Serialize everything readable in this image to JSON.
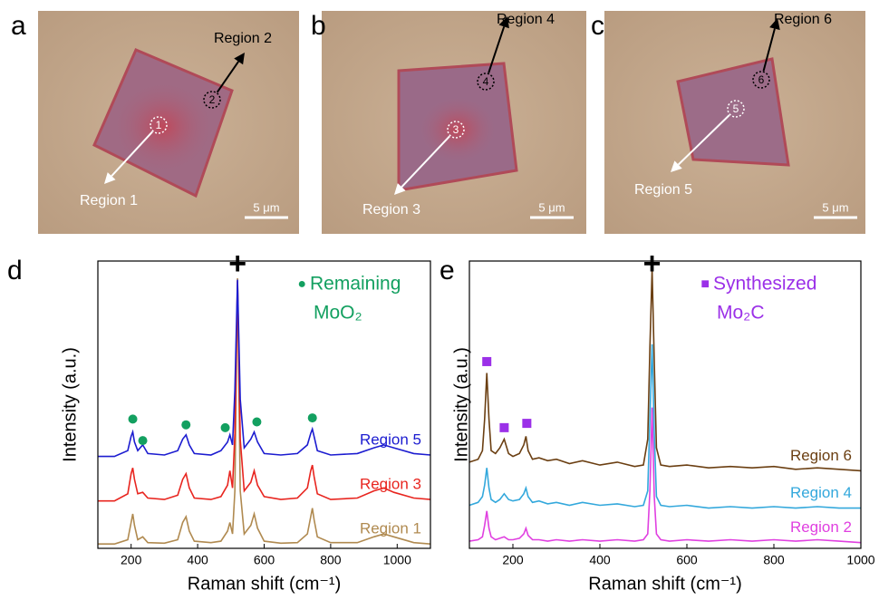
{
  "panels": [
    {
      "letter": "a",
      "scale_bar": "5 μm",
      "regions": [
        {
          "marker": "1",
          "label": "Region 1"
        },
        {
          "marker": "2",
          "label": "Region 2"
        }
      ]
    },
    {
      "letter": "b",
      "scale_bar": "5 μm",
      "regions": [
        {
          "marker": "3",
          "label": "Region 3"
        },
        {
          "marker": "4",
          "label": "Region 4"
        }
      ]
    },
    {
      "letter": "c",
      "scale_bar": "5 μm",
      "regions": [
        {
          "marker": "5",
          "label": "Region 5"
        },
        {
          "marker": "6",
          "label": "Region 6"
        }
      ]
    }
  ],
  "chart_data": [
    {
      "type": "line",
      "letter": "d",
      "xlabel": "Raman shift (cm⁻¹)",
      "ylabel": "Intensity (a.u.)",
      "xlim": [
        100,
        1100
      ],
      "xticks": [
        200,
        400,
        600,
        800,
        1000
      ],
      "ylim": [
        0,
        100
      ],
      "x": [
        100,
        150,
        190,
        200,
        205,
        210,
        220,
        235,
        250,
        300,
        340,
        355,
        365,
        375,
        390,
        440,
        470,
        490,
        497,
        505,
        512,
        520,
        528,
        540,
        560,
        570,
        580,
        600,
        650,
        700,
        730,
        740,
        745,
        750,
        760,
        800,
        880,
        930,
        960,
        990,
        1050,
        1100
      ],
      "series": [
        {
          "name": "Region 1",
          "color": "#b08a50",
          "values": [
            1.5,
            1.5,
            3,
            9,
            12,
            8,
            3,
            4,
            2,
            1.8,
            3,
            9,
            11,
            6,
            2.5,
            2,
            2.5,
            6,
            9,
            5,
            20,
            94,
            20,
            5,
            8,
            12,
            7,
            2.5,
            1.8,
            2,
            5,
            11,
            14,
            10,
            4,
            2,
            2,
            4,
            5,
            4,
            2,
            1.5
          ]
        },
        {
          "name": "Region 3",
          "color": "#e8251f",
          "values": [
            16.5,
            16.5,
            19,
            26,
            28,
            24,
            19,
            19.5,
            17.5,
            17,
            18.5,
            24,
            26,
            21,
            17.5,
            17,
            18,
            22,
            27,
            21,
            40,
            93,
            38,
            20,
            23,
            27,
            22,
            18,
            17,
            17.5,
            21,
            27,
            29,
            25,
            19,
            17,
            17.5,
            20,
            21,
            19.5,
            17.5,
            17
          ]
        },
        {
          "name": "Region 5",
          "color": "#1c1cd0",
          "values": [
            32,
            32,
            34,
            39,
            40.5,
            37,
            34,
            36,
            33,
            32.5,
            34,
            38,
            39.5,
            36,
            33,
            32.5,
            34,
            37,
            39.5,
            36,
            55,
            93.5,
            52,
            35,
            38,
            40.5,
            37,
            33,
            32.5,
            33,
            36,
            40,
            41.5,
            39,
            34,
            32.5,
            33,
            35,
            36,
            35,
            33,
            32.5
          ]
        }
      ],
      "peak_label": "+",
      "peak": {
        "x": 520,
        "y": 99
      },
      "legend_symbol": "●",
      "legend_lines": [
        "Remaining",
        "MoO₂"
      ],
      "marker_color": "#13a060",
      "markers": {
        "x": [
          205,
          235,
          365,
          483,
          578,
          745
        ],
        "y": [
          45,
          37.5,
          43,
          42,
          44,
          45.4
        ]
      }
    },
    {
      "type": "line",
      "letter": "e",
      "xlabel": "Raman shift (cm⁻¹)",
      "ylabel": "Intensity (a.u.)",
      "xlim": [
        100,
        1000
      ],
      "xticks": [
        200,
        400,
        600,
        800,
        1000
      ],
      "ylim": [
        0,
        100
      ],
      "x": [
        100,
        120,
        130,
        135,
        140,
        145,
        150,
        160,
        170,
        180,
        190,
        200,
        215,
        225,
        230,
        235,
        245,
        260,
        280,
        300,
        330,
        360,
        400,
        440,
        480,
        500,
        510,
        515,
        520,
        525,
        530,
        540,
        560,
        600,
        650,
        700,
        750,
        800,
        850,
        900,
        950,
        1000
      ],
      "series": [
        {
          "name": "Region 2",
          "color": "#e040e0",
          "values": [
            2.5,
            3,
            4,
            8,
            13,
            7,
            4,
            3,
            3.5,
            4,
            3,
            3,
            3.5,
            5,
            7,
            4.5,
            3,
            3,
            2.5,
            3,
            2.5,
            3,
            2.5,
            3,
            2.5,
            3,
            5,
            20,
            49,
            18,
            5,
            3,
            2.5,
            3,
            2.5,
            3,
            2.5,
            3,
            2.5,
            3,
            2.5,
            2
          ]
        },
        {
          "name": "Region 4",
          "color": "#33a8dc",
          "values": [
            15,
            16,
            18,
            22,
            28,
            21,
            17,
            16,
            17,
            19,
            17,
            16.5,
            17,
            19,
            21,
            18,
            16,
            16.5,
            15.5,
            16,
            15,
            16,
            15,
            15.5,
            14.5,
            15,
            20,
            45,
            71,
            40,
            18,
            15,
            14.5,
            15,
            14,
            14.5,
            14,
            14.5,
            14,
            14.5,
            14,
            14
          ]
        },
        {
          "name": "Region 6",
          "color": "#6b3f12",
          "values": [
            30,
            31,
            34,
            45,
            61,
            45,
            34,
            33,
            35,
            38,
            33,
            32,
            33,
            36,
            39,
            34,
            31,
            31.5,
            30.5,
            31,
            29.5,
            30.5,
            29,
            30,
            28.5,
            29,
            38,
            70,
            97,
            65,
            35,
            29,
            28.5,
            29,
            28,
            28.5,
            28,
            28.5,
            27.5,
            28,
            27.5,
            27
          ]
        }
      ],
      "peak_label": "+",
      "peak": {
        "x": 520,
        "y": 99
      },
      "legend_symbol": "■",
      "legend_lines": [
        "Synthesized",
        "Mo₂C"
      ],
      "marker_color": "#9b30e8",
      "markers": {
        "x": [
          140,
          180,
          232
        ],
        "y": [
          65,
          42,
          43.5
        ]
      }
    }
  ]
}
